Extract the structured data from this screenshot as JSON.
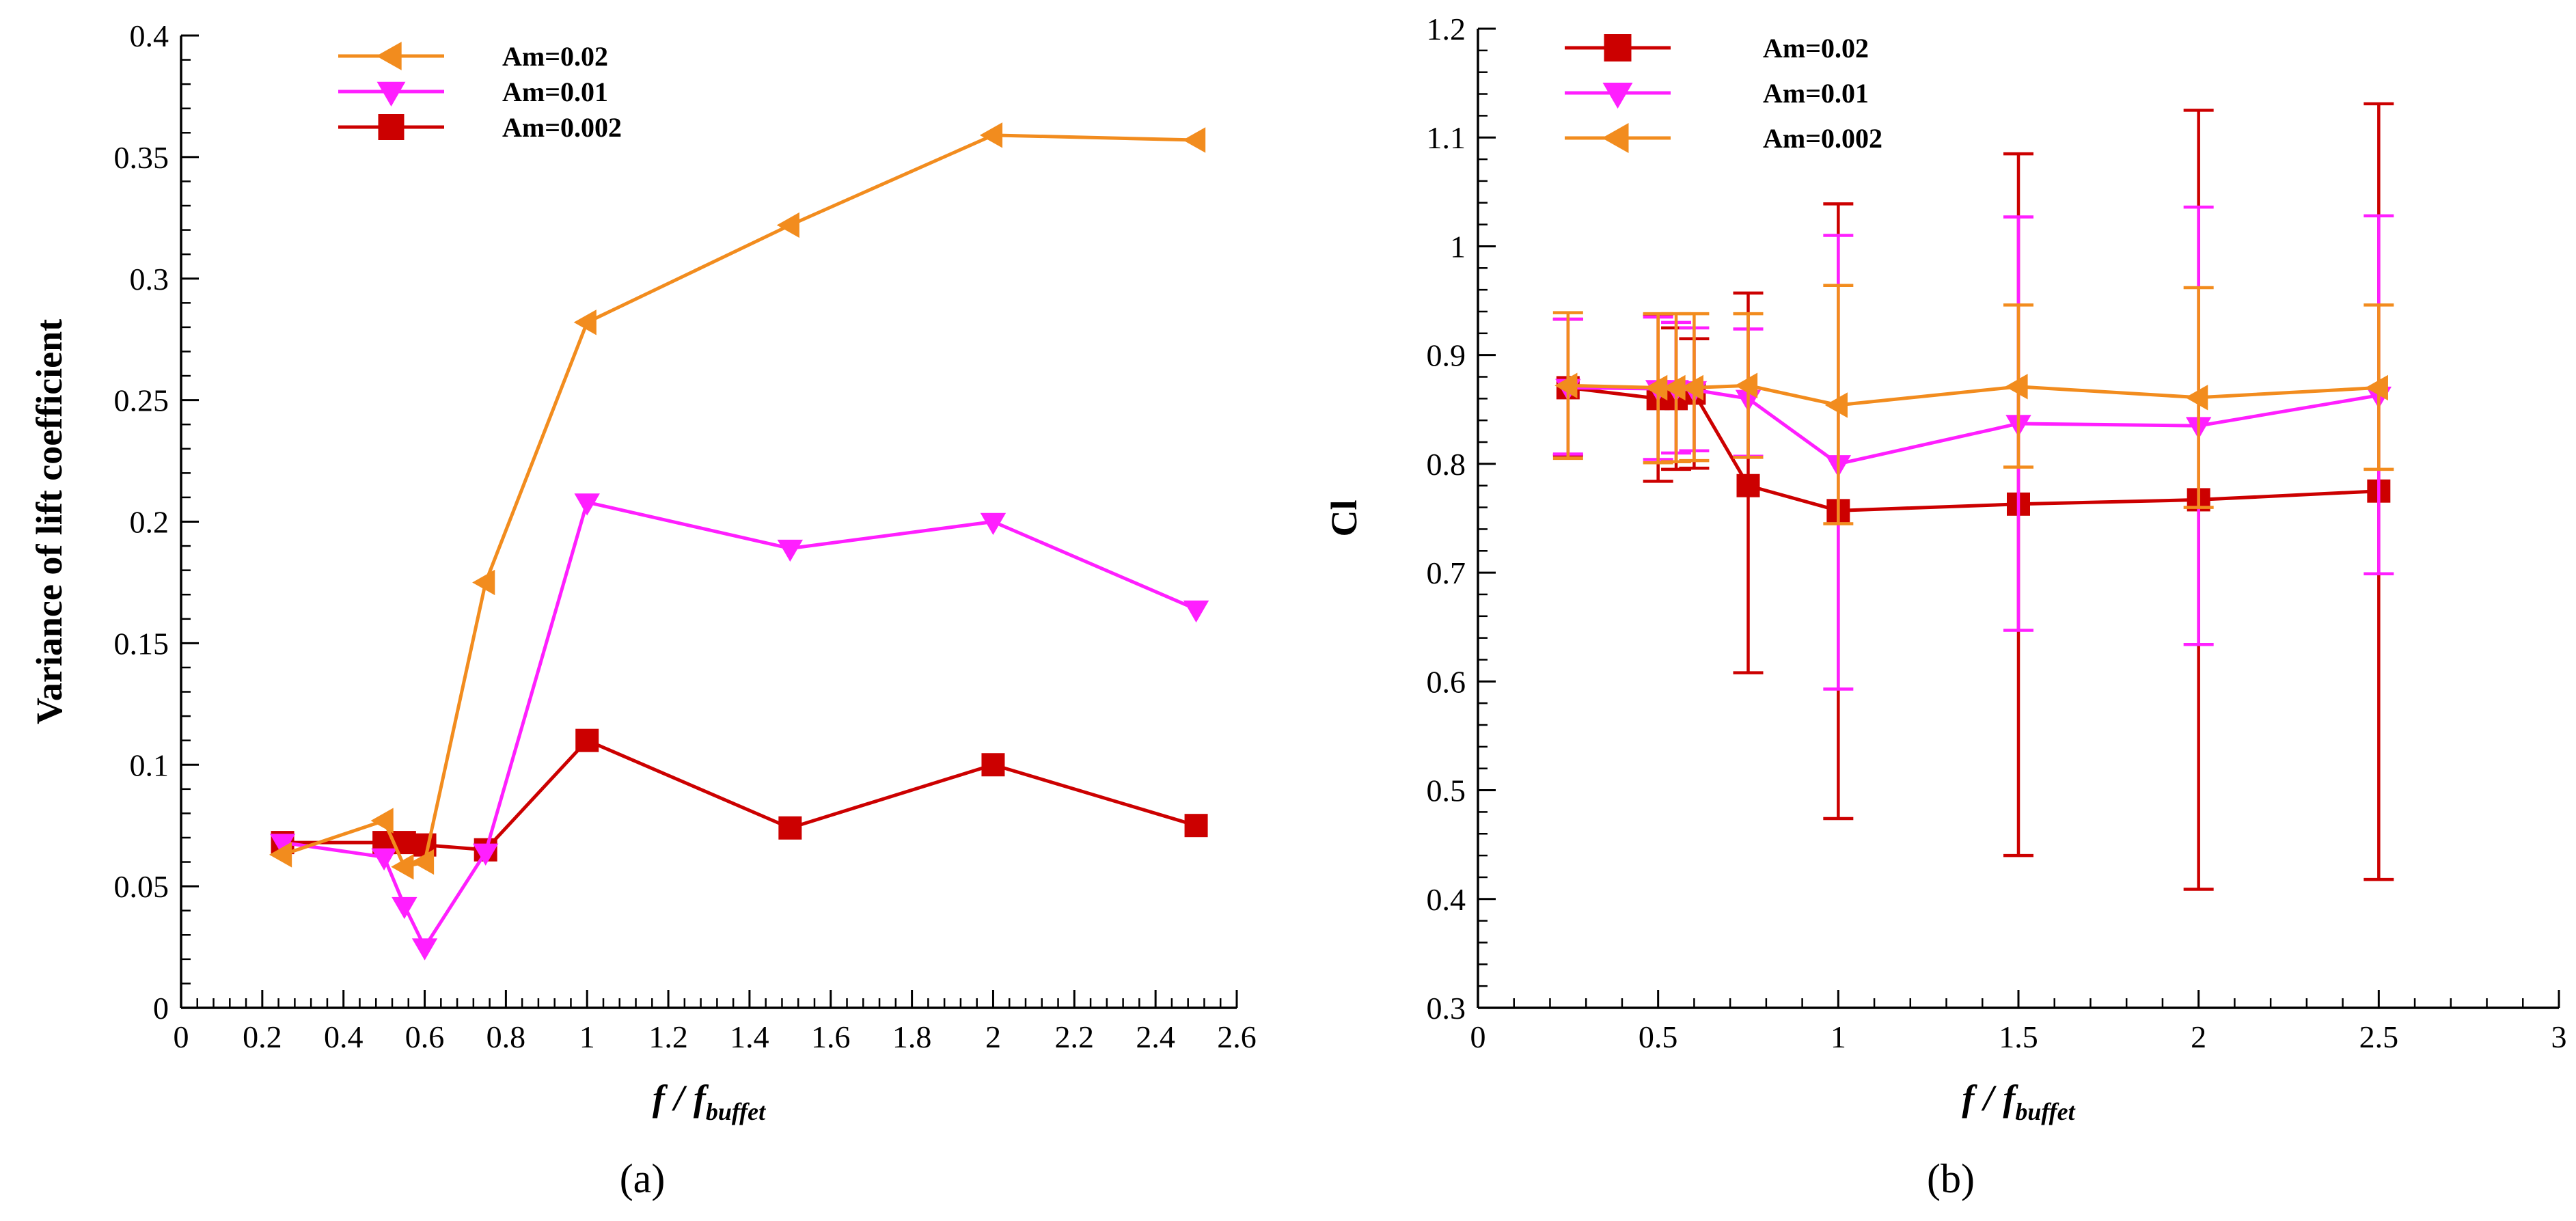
{
  "chart_data": [
    {
      "type": "line",
      "xlabel": "f / f",
      "xlabel_sub": "buffet",
      "ylabel": "Variance of lift coefficient",
      "panel_label": "(a)",
      "xlim": [
        0,
        2.6
      ],
      "ylim": [
        0,
        0.4
      ],
      "xticks": [
        0,
        0.2,
        0.4,
        0.6,
        0.8,
        1,
        1.2,
        1.4,
        1.6,
        1.8,
        2,
        2.2,
        2.4,
        2.6
      ],
      "xtick_labels": [
        "0",
        "0.2",
        "0.4",
        "0.6",
        "0.8",
        "1",
        "1.2",
        "1.4",
        "1.6",
        "1.8",
        "2",
        "2.2",
        "2.4",
        "2.6"
      ],
      "yticks": [
        0,
        0.05,
        0.1,
        0.15,
        0.2,
        0.25,
        0.3,
        0.35,
        0.4
      ],
      "ytick_labels": [
        "0",
        "0.05",
        "0.1",
        "0.15",
        "0.2",
        "0.25",
        "0.3",
        "0.35",
        "0.4"
      ],
      "legend_position": "top-left",
      "grid": false,
      "series": [
        {
          "name": "Am=0.02",
          "color": "#f28c1e",
          "marker": "triangle-left",
          "x": [
            0.25,
            0.5,
            0.55,
            0.6,
            0.75,
            1,
            1.5,
            2,
            2.5
          ],
          "y": [
            0.063,
            0.077,
            0.058,
            0.06,
            0.175,
            0.282,
            0.322,
            0.359,
            0.357
          ]
        },
        {
          "name": "Am=0.01",
          "color": "#ff1fff",
          "marker": "triangle-down",
          "x": [
            0.25,
            0.5,
            0.55,
            0.6,
            0.75,
            1,
            1.5,
            2,
            2.5
          ],
          "y": [
            0.068,
            0.062,
            0.042,
            0.025,
            0.064,
            0.208,
            0.189,
            0.2,
            0.164
          ]
        },
        {
          "name": "Am=0.002",
          "color": "#cc0000",
          "marker": "square",
          "x": [
            0.25,
            0.5,
            0.55,
            0.6,
            0.75,
            1,
            1.5,
            2,
            2.5
          ],
          "y": [
            0.068,
            0.068,
            0.068,
            0.067,
            0.065,
            0.11,
            0.074,
            0.1,
            0.075
          ]
        }
      ]
    },
    {
      "type": "line",
      "xlabel": "f / f",
      "xlabel_sub": "buffet",
      "ylabel": "Cl",
      "panel_label": "(b)",
      "xlim": [
        0,
        3
      ],
      "ylim": [
        0.3,
        1.2
      ],
      "xticks": [
        0,
        0.5,
        1,
        1.5,
        2,
        2.5,
        3
      ],
      "xtick_labels": [
        "0",
        "0.5",
        "1",
        "1.5",
        "2",
        "2.5",
        "3"
      ],
      "yticks": [
        0.3,
        0.4,
        0.5,
        0.6,
        0.7,
        0.8,
        0.9,
        1,
        1.1,
        1.2
      ],
      "ytick_labels": [
        "0.3",
        "0.4",
        "0.5",
        "0.6",
        "0.7",
        "0.8",
        "0.9",
        "1",
        "1.1",
        "1.2"
      ],
      "legend_position": "top-left",
      "grid": false,
      "series": [
        {
          "name": "Am=0.02",
          "color": "#cc0000",
          "marker": "square",
          "x": [
            0.25,
            0.5,
            0.55,
            0.6,
            0.75,
            1,
            1.5,
            2,
            2.5
          ],
          "y": [
            0.87,
            0.86,
            0.86,
            0.865,
            0.78,
            0.757,
            0.763,
            0.767,
            0.775
          ],
          "err_low": [
            0.808,
            0.784,
            0.795,
            0.796,
            0.608,
            0.474,
            0.44,
            0.409,
            0.418
          ],
          "err_high": [
            0.933,
            0.937,
            0.925,
            0.915,
            0.957,
            1.039,
            1.085,
            1.125,
            1.131
          ]
        },
        {
          "name": "Am=0.01",
          "color": "#ff1fff",
          "marker": "triangle-down",
          "x": [
            0.25,
            0.5,
            0.55,
            0.6,
            0.75,
            1,
            1.5,
            2,
            2.5
          ],
          "y": [
            0.87,
            0.869,
            0.869,
            0.868,
            0.86,
            0.8,
            0.837,
            0.835,
            0.863
          ],
          "err_low": [
            0.809,
            0.804,
            0.81,
            0.812,
            0.807,
            0.593,
            0.647,
            0.634,
            0.699
          ],
          "err_high": [
            0.933,
            0.935,
            0.93,
            0.925,
            0.924,
            1.01,
            1.027,
            1.036,
            1.028
          ]
        },
        {
          "name": "Am=0.002",
          "color": "#f28c1e",
          "marker": "triangle-left",
          "x": [
            0.25,
            0.5,
            0.55,
            0.6,
            0.75,
            1,
            1.5,
            2,
            2.5
          ],
          "y": [
            0.872,
            0.87,
            0.87,
            0.87,
            0.872,
            0.854,
            0.871,
            0.861,
            0.87
          ],
          "err_low": [
            0.805,
            0.801,
            0.802,
            0.803,
            0.806,
            0.745,
            0.797,
            0.76,
            0.795
          ],
          "err_high": [
            0.939,
            0.938,
            0.938,
            0.938,
            0.938,
            0.964,
            0.946,
            0.962,
            0.946
          ]
        }
      ]
    }
  ]
}
